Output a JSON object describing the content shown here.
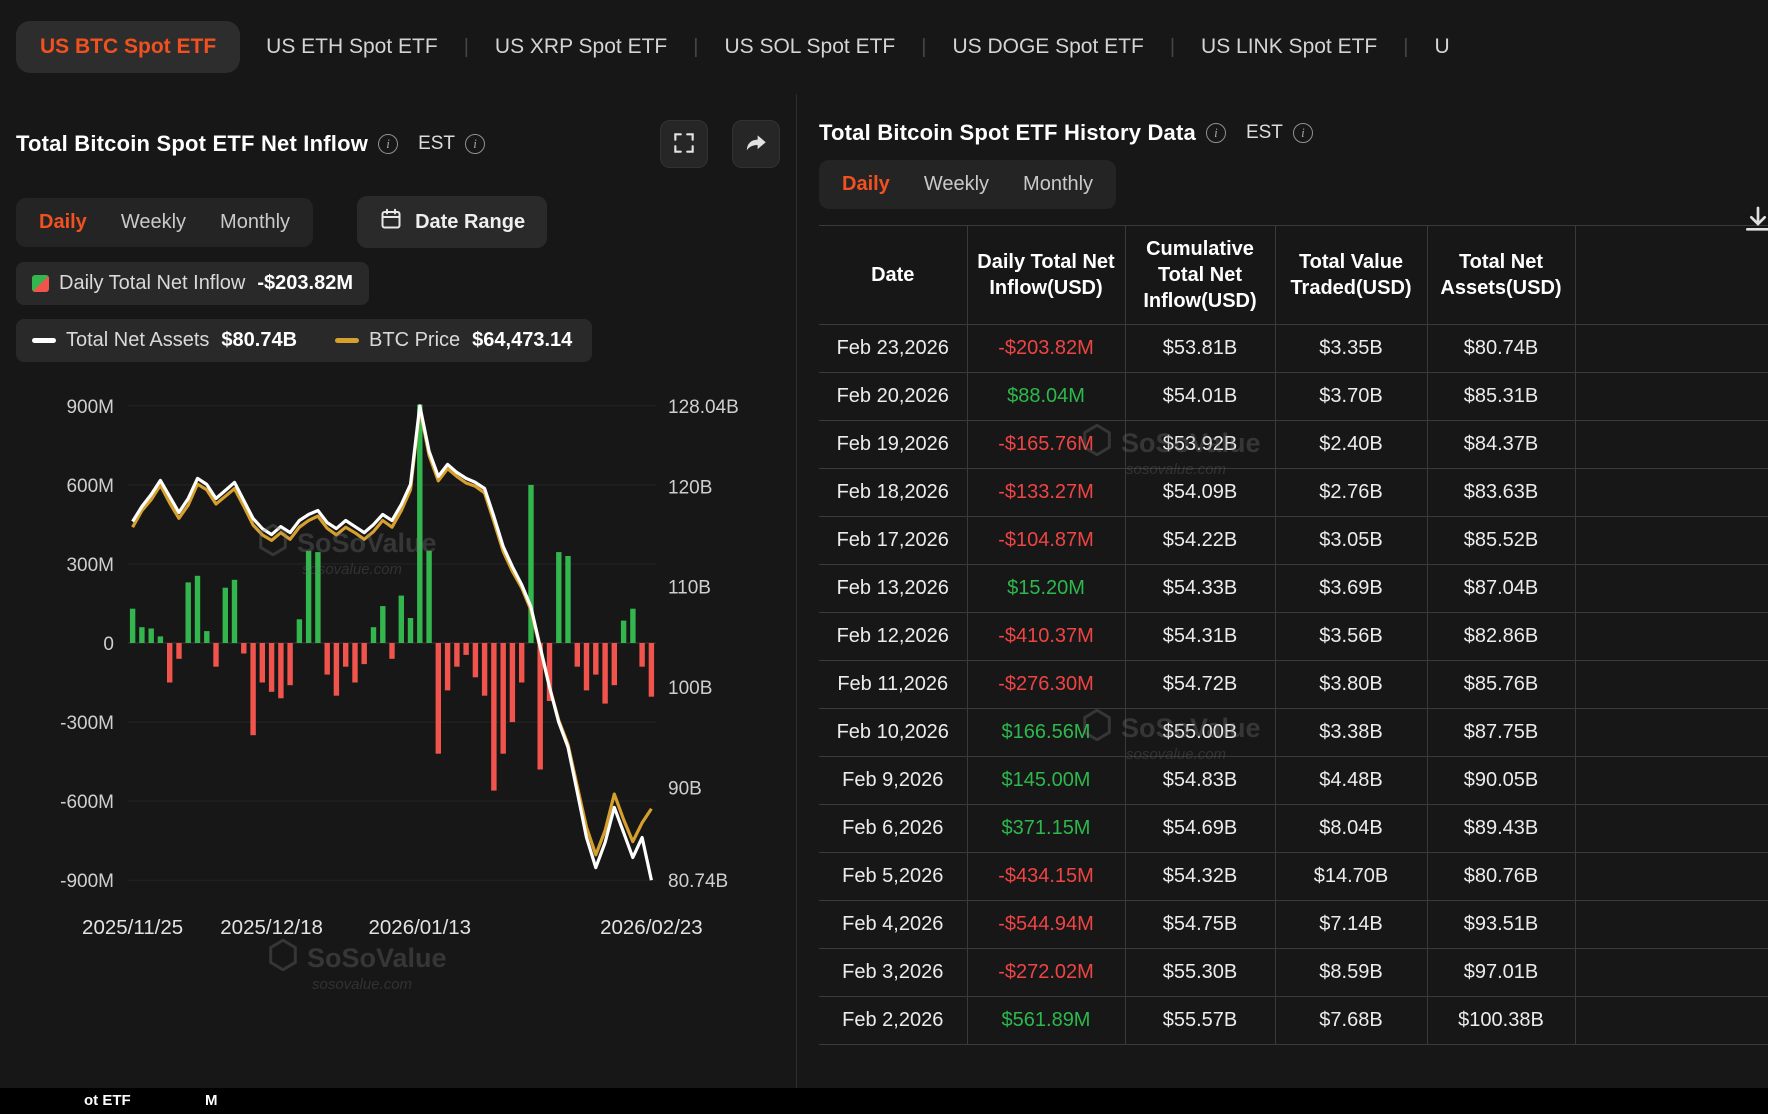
{
  "theme": {
    "accent": "#f1511f",
    "positive": "#2db84d",
    "negative": "#ef4444",
    "btc_line": "#d6a02e",
    "assets_line": "#ffffff"
  },
  "nav": {
    "tabs": [
      {
        "label": "US BTC Spot ETF",
        "active": true
      },
      {
        "label": "US ETH Spot ETF",
        "active": false
      },
      {
        "label": "US XRP Spot ETF",
        "active": false
      },
      {
        "label": "US SOL Spot ETF",
        "active": false
      },
      {
        "label": "US DOGE Spot ETF",
        "active": false
      },
      {
        "label": "US LINK Spot ETF",
        "active": false
      },
      {
        "label": "U",
        "active": false
      }
    ]
  },
  "left_panel": {
    "title": "Total Bitcoin Spot ETF Net Inflow",
    "timezone": "EST",
    "tabs": [
      "Daily",
      "Weekly",
      "Monthly"
    ],
    "active_tab": "Daily",
    "date_range_label": "Date Range",
    "legend": {
      "inflow_label": "Daily Total Net Inflow",
      "inflow_value": "-$203.82M",
      "assets_label": "Total Net Assets",
      "assets_value": "$80.74B",
      "btc_label": "BTC Price",
      "btc_value": "$64,473.14"
    },
    "watermark": {
      "name": "SoSoValue",
      "domain": "sosovalue.com"
    }
  },
  "chart_data": {
    "type": "combo_bar_line",
    "title": "Total Bitcoin Spot ETF Net Inflow (Daily)",
    "bars": {
      "name": "Daily Total Net Inflow (USD, millions)",
      "values": [
        130,
        60,
        55,
        25,
        -150,
        -60,
        230,
        255,
        45,
        -90,
        210,
        240,
        -40,
        -350,
        -150,
        -185,
        -210,
        -160,
        90,
        350,
        345,
        -120,
        -200,
        -90,
        -150,
        -80,
        60,
        140,
        -60,
        180,
        95,
        905,
        350,
        -420,
        -180,
        -90,
        -45,
        -130,
        -200,
        -560,
        -420,
        -300,
        -150,
        600,
        -480,
        -220,
        345,
        330,
        -90,
        -180,
        -120,
        -230,
        -160,
        85,
        130,
        -90,
        -203.82
      ]
    },
    "series_assets": {
      "name": "Total Net Assets (USD, billions)",
      "values": [
        116.5,
        118.0,
        119.2,
        120.6,
        119.0,
        117.4,
        118.8,
        120.8,
        120.2,
        118.8,
        119.6,
        120.4,
        118.6,
        116.8,
        115.8,
        115.2,
        116.0,
        115.4,
        116.6,
        117.2,
        117.6,
        116.4,
        115.8,
        116.6,
        116.0,
        115.4,
        116.2,
        117.2,
        116.6,
        118.2,
        120.2,
        128.04,
        123.5,
        121.0,
        122.2,
        121.4,
        120.8,
        120.4,
        119.8,
        117.0,
        114.0,
        112.0,
        110.2,
        108.0,
        104.0,
        100.0,
        96.5,
        94.0,
        89.5,
        85.0,
        82.0,
        84.5,
        88.0,
        85.5,
        83.0,
        85.0,
        80.74
      ]
    },
    "series_btc": {
      "name": "BTC Price (USD)",
      "values": [
        90000,
        91500,
        92500,
        93800,
        92200,
        90800,
        92000,
        93900,
        93400,
        92100,
        92800,
        93500,
        91900,
        90200,
        89300,
        88800,
        89500,
        88900,
        90000,
        90600,
        91000,
        89900,
        89300,
        90000,
        89500,
        88900,
        89600,
        90600,
        90000,
        91500,
        93400,
        100800,
        96500,
        94200,
        95300,
        94600,
        94000,
        93700,
        93100,
        90500,
        87800,
        86000,
        84500,
        82500,
        79000,
        75500,
        72500,
        70300,
        66500,
        62800,
        60300,
        62500,
        65800,
        63500,
        61500,
        63200,
        64473
      ]
    },
    "x_ticks": [
      {
        "label": "2025/11/25",
        "index": 0
      },
      {
        "label": "2025/12/18",
        "index": 15
      },
      {
        "label": "2026/01/13",
        "index": 31
      },
      {
        "label": "2026/02/23",
        "index": 56
      }
    ],
    "left_axis": {
      "domain": [
        -960,
        960
      ],
      "ticks": [
        {
          "v": 900,
          "label": "900M"
        },
        {
          "v": 600,
          "label": "600M"
        },
        {
          "v": 300,
          "label": "300M"
        },
        {
          "v": 0,
          "label": "0"
        },
        {
          "v": -300,
          "label": "-300M"
        },
        {
          "v": -600,
          "label": "-600M"
        },
        {
          "v": -900,
          "label": "-900M"
        }
      ]
    },
    "right_axis": {
      "domain": [
        80.74,
        128.04
      ],
      "ticks": [
        {
          "v": 128.04,
          "label": "128.04B"
        },
        {
          "v": 120,
          "label": "120B"
        },
        {
          "v": 110,
          "label": "110B"
        },
        {
          "v": 100,
          "label": "100B"
        },
        {
          "v": 90,
          "label": "90B"
        },
        {
          "v": 80.74,
          "label": "80.74B"
        }
      ]
    },
    "btc_axis": {
      "domain": [
        58000,
        101000
      ]
    },
    "colors": {
      "positive": "#33b64e",
      "negative": "#f0544c",
      "assets": "#ffffff",
      "btc": "#d6a02e"
    },
    "legend_position": "top-left",
    "grid": "faint-horizontal"
  },
  "right_panel": {
    "title": "Total Bitcoin Spot ETF History Data",
    "timezone": "EST",
    "tabs": [
      "Daily",
      "Weekly",
      "Monthly"
    ],
    "active_tab": "Daily",
    "table": {
      "headers": [
        "Date",
        "Daily Total Net Inflow(USD)",
        "Cumulative Total Net Inflow(USD)",
        "Total Value Traded(USD)",
        "Total Net Assets(USD)"
      ],
      "rows": [
        [
          "Feb 23,2026",
          "-$203.82M",
          "$53.81B",
          "$3.35B",
          "$80.74B"
        ],
        [
          "Feb 20,2026",
          "$88.04M",
          "$54.01B",
          "$3.70B",
          "$85.31B"
        ],
        [
          "Feb 19,2026",
          "-$165.76M",
          "$53.92B",
          "$2.40B",
          "$84.37B"
        ],
        [
          "Feb 18,2026",
          "-$133.27M",
          "$54.09B",
          "$2.76B",
          "$83.63B"
        ],
        [
          "Feb 17,2026",
          "-$104.87M",
          "$54.22B",
          "$3.05B",
          "$85.52B"
        ],
        [
          "Feb 13,2026",
          "$15.20M",
          "$54.33B",
          "$3.69B",
          "$87.04B"
        ],
        [
          "Feb 12,2026",
          "-$410.37M",
          "$54.31B",
          "$3.56B",
          "$82.86B"
        ],
        [
          "Feb 11,2026",
          "-$276.30M",
          "$54.72B",
          "$3.80B",
          "$85.76B"
        ],
        [
          "Feb 10,2026",
          "$166.56M",
          "$55.00B",
          "$3.38B",
          "$87.75B"
        ],
        [
          "Feb 9,2026",
          "$145.00M",
          "$54.83B",
          "$4.48B",
          "$90.05B"
        ],
        [
          "Feb 6,2026",
          "$371.15M",
          "$54.69B",
          "$8.04B",
          "$89.43B"
        ],
        [
          "Feb 5,2026",
          "-$434.15M",
          "$54.32B",
          "$14.70B",
          "$80.76B"
        ],
        [
          "Feb 4,2026",
          "-$544.94M",
          "$54.75B",
          "$7.14B",
          "$93.51B"
        ],
        [
          "Feb 3,2026",
          "-$272.02M",
          "$55.30B",
          "$8.59B",
          "$97.01B"
        ],
        [
          "Feb 2,2026",
          "$561.89M",
          "$55.57B",
          "$7.68B",
          "$100.38B"
        ]
      ]
    },
    "watermark": {
      "name": "SoSoValue",
      "domain": "sosovalue.com"
    }
  },
  "ticker": {
    "fragments": [
      "ot ETF",
      "M"
    ]
  }
}
